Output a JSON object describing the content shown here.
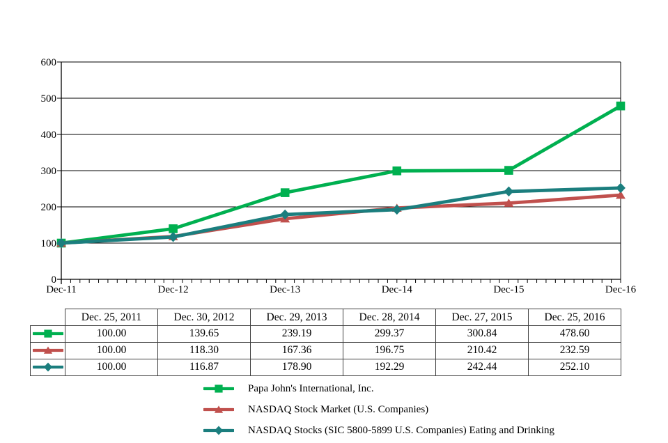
{
  "chart_data": {
    "type": "line",
    "title": "",
    "xlabel": "",
    "ylabel": "",
    "x_labels": [
      "Dec-11",
      "Dec-12",
      "Dec-13",
      "Dec-14",
      "Dec-15",
      "Dec-16"
    ],
    "ylim": [
      0,
      600
    ],
    "yticks": [
      0,
      100,
      200,
      300,
      400,
      500,
      600
    ],
    "minor_x_ticks_per_interval": 12,
    "grid": true,
    "legend_position": "bottom",
    "series": [
      {
        "name": "Papa John's International, Inc.",
        "color": "#00B050",
        "marker": "square",
        "values": [
          100.0,
          139.65,
          239.19,
          299.37,
          300.84,
          478.6
        ]
      },
      {
        "name": "NASDAQ Stock Market (U.S. Companies)",
        "color": "#C0504D",
        "marker": "triangle",
        "values": [
          100.0,
          118.3,
          167.36,
          196.75,
          210.42,
          232.59
        ]
      },
      {
        "name": "NASDAQ Stocks (SIC 5800-5899 U.S. Companies) Eating and Drinking",
        "color": "#1B7E7E",
        "marker": "diamond",
        "values": [
          100.0,
          116.87,
          178.9,
          192.29,
          242.44,
          252.1
        ]
      }
    ]
  },
  "table": {
    "headers": [
      "Dec. 25, 2011",
      "Dec. 30, 2012",
      "Dec. 29, 2013",
      "Dec. 28, 2014",
      "Dec. 27, 2015",
      "Dec. 25, 2016"
    ],
    "rows": [
      {
        "series": "papa-johns-international",
        "values": [
          "100.00",
          "139.65",
          "239.19",
          "299.37",
          "300.84",
          "478.60"
        ]
      },
      {
        "series": "nasdaq-stock-market-us",
        "values": [
          "100.00",
          "118.30",
          "167.36",
          "196.75",
          "210.42",
          "232.59"
        ]
      },
      {
        "series": "nasdaq-eating-and-drinking",
        "values": [
          "100.00",
          "116.87",
          "178.90",
          "192.29",
          "242.44",
          "252.10"
        ]
      }
    ]
  },
  "legend": {
    "items": [
      {
        "label": "Papa John's International, Inc.",
        "series": "papa-johns-international"
      },
      {
        "label": "NASDAQ Stock Market (U.S. Companies)",
        "series": "nasdaq-stock-market-us"
      },
      {
        "label": "NASDAQ Stocks (SIC 5800-5899 U.S. Companies) Eating and Drinking",
        "series": "nasdaq-eating-and-drinking"
      }
    ]
  },
  "colors": {
    "papa_johns_green": "#00B050",
    "nasdaq_red": "#C0504D",
    "eating_drinking_teal": "#1B7E7E",
    "grid_black": "#000000",
    "table_border": "#3f3f3f"
  }
}
